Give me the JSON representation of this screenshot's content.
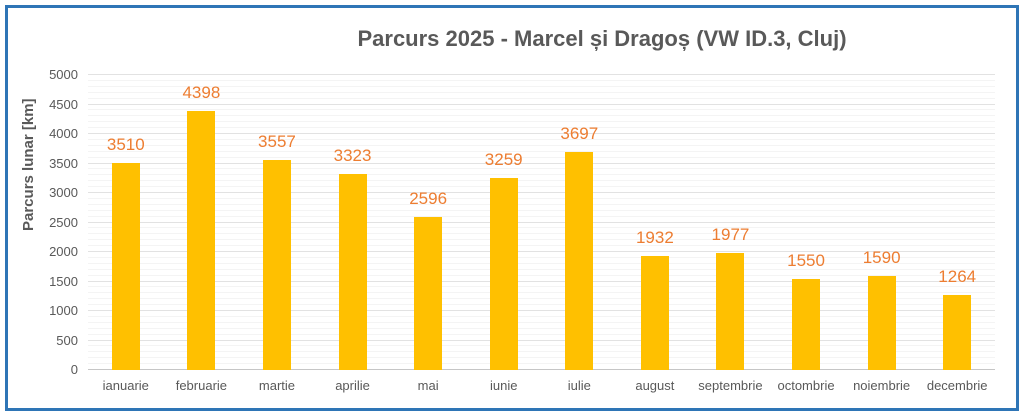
{
  "chart_data": {
    "type": "bar",
    "title": "Parcurs 2025 - Marcel și Dragoș (VW ID.3, Cluj)",
    "xlabel": "",
    "ylabel": "Parcurs lunar [km]",
    "categories": [
      "ianuarie",
      "februarie",
      "martie",
      "aprilie",
      "mai",
      "iunie",
      "iulie",
      "august",
      "septembrie",
      "octombrie",
      "noiembrie",
      "decembrie"
    ],
    "values": [
      3510,
      4398,
      3557,
      3323,
      2596,
      3259,
      3697,
      1932,
      1977,
      1550,
      1590,
      1264
    ],
    "ylim": [
      0,
      5000
    ],
    "ytick_step": 500,
    "minor_gridline_step": 100,
    "grid": true,
    "legend": false,
    "data_labels": true,
    "colors": {
      "bar": "#FFC000",
      "data_label": "#ED7D31",
      "title_text": "#595959",
      "axis_text": "#595959",
      "major_gridline": "#E2E2E2",
      "minor_gridline": "#F4F4F4",
      "axis_line": "#C6C6C6",
      "frame_border": "#2E75B6",
      "background": "#FFFFFF"
    }
  }
}
